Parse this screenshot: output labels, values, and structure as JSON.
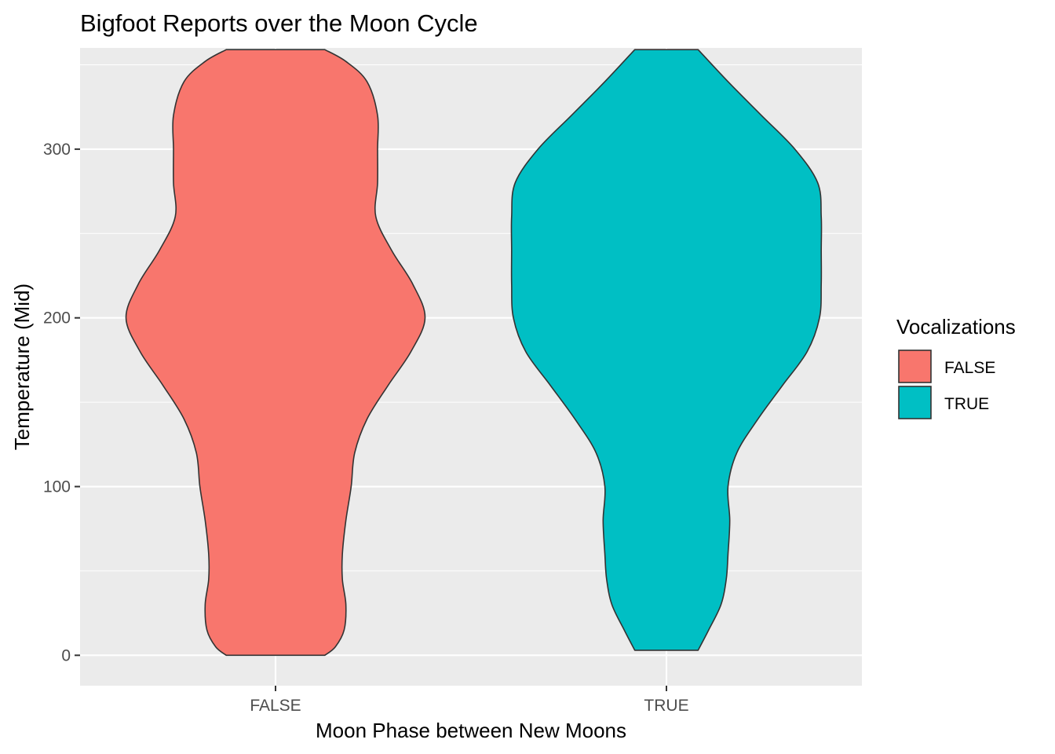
{
  "chart_data": {
    "type": "violin",
    "title": "Bigfoot Reports over the Moon Cycle",
    "xlabel": "Moon Phase between New Moons",
    "ylabel": "Temperature (Mid)",
    "categories": [
      "FALSE",
      "TRUE"
    ],
    "ylim": [
      -18,
      360
    ],
    "yticks": [
      0,
      100,
      200,
      300
    ],
    "ytick_labels": [
      "0",
      "100",
      "200",
      "300"
    ],
    "grid": true,
    "legend": {
      "title": "Vocalizations",
      "position": "right",
      "entries": [
        "FALSE",
        "TRUE"
      ]
    },
    "series": [
      {
        "category": "FALSE",
        "color": "#F8766D",
        "range": [
          0,
          359
        ],
        "density_profile": [
          [
            0,
            0.28
          ],
          [
            5,
            0.34
          ],
          [
            15,
            0.39
          ],
          [
            30,
            0.4
          ],
          [
            45,
            0.38
          ],
          [
            60,
            0.38
          ],
          [
            80,
            0.4
          ],
          [
            100,
            0.43
          ],
          [
            120,
            0.45
          ],
          [
            140,
            0.52
          ],
          [
            160,
            0.64
          ],
          [
            180,
            0.77
          ],
          [
            200,
            0.85
          ],
          [
            220,
            0.78
          ],
          [
            240,
            0.66
          ],
          [
            260,
            0.57
          ],
          [
            280,
            0.58
          ],
          [
            300,
            0.58
          ],
          [
            320,
            0.58
          ],
          [
            340,
            0.52
          ],
          [
            352,
            0.4
          ],
          [
            359,
            0.28
          ]
        ]
      },
      {
        "category": "TRUE",
        "color": "#00BFC4",
        "range": [
          3,
          359
        ],
        "density_profile": [
          [
            3,
            0.18
          ],
          [
            15,
            0.24
          ],
          [
            30,
            0.31
          ],
          [
            45,
            0.34
          ],
          [
            60,
            0.35
          ],
          [
            80,
            0.36
          ],
          [
            100,
            0.35
          ],
          [
            120,
            0.4
          ],
          [
            140,
            0.52
          ],
          [
            160,
            0.66
          ],
          [
            180,
            0.8
          ],
          [
            200,
            0.87
          ],
          [
            220,
            0.88
          ],
          [
            240,
            0.88
          ],
          [
            260,
            0.88
          ],
          [
            280,
            0.86
          ],
          [
            300,
            0.73
          ],
          [
            320,
            0.54
          ],
          [
            340,
            0.35
          ],
          [
            359,
            0.18
          ]
        ]
      }
    ]
  }
}
